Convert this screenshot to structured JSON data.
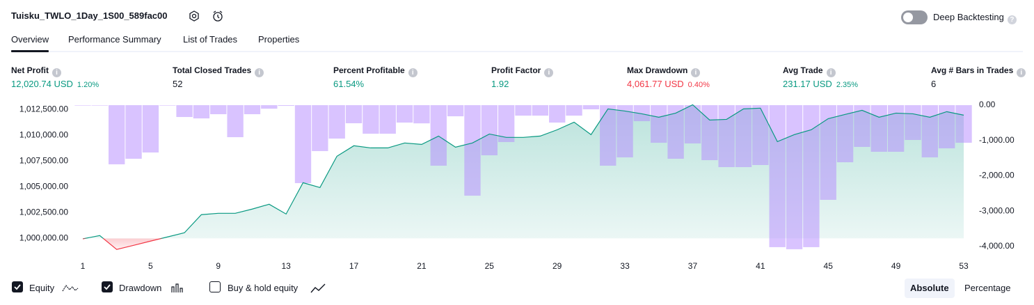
{
  "header": {
    "title": "Tuisku_TWLO_1Day_1S00_589fac00",
    "deep_backtesting": "Deep Backtesting"
  },
  "tabs": [
    "Overview",
    "Performance Summary",
    "List of Trades",
    "Properties"
  ],
  "active_tab": 0,
  "metrics": [
    {
      "label": "Net Profit",
      "value": "12,020.74 USD",
      "percent": "1.20%",
      "color": "#089981"
    },
    {
      "label": "Total Closed Trades",
      "value": "52",
      "color": "#131722"
    },
    {
      "label": "Percent Profitable",
      "value": "61.54%",
      "color": "#089981"
    },
    {
      "label": "Profit Factor",
      "value": "1.92",
      "color": "#089981"
    },
    {
      "label": "Max Drawdown",
      "value": "4,061.77 USD",
      "percent": "0.40%",
      "color": "#f23645"
    },
    {
      "label": "Avg Trade",
      "value": "231.17 USD",
      "percent": "2.35%",
      "color": "#089981"
    },
    {
      "label": "Avg # Bars in Trades",
      "value": "6",
      "color": "#131722"
    }
  ],
  "chart_data": {
    "type": "combo",
    "categories": [
      1,
      null,
      null,
      null,
      5,
      null,
      null,
      null,
      9,
      null,
      null,
      null,
      13,
      null,
      null,
      null,
      17,
      null,
      null,
      null,
      21,
      null,
      null,
      null,
      25,
      null,
      null,
      null,
      29,
      null,
      null,
      null,
      33,
      null,
      null,
      null,
      37,
      null,
      null,
      null,
      41,
      null,
      null,
      null,
      45,
      null,
      null,
      null,
      49,
      null,
      null,
      null,
      53
    ],
    "series": [
      {
        "name": "Equity",
        "type": "line",
        "color": "#089981",
        "negative_color": "#f23645",
        "values": [
          999950,
          1000270,
          998920,
          999320,
          999730,
          1000135,
          1000540,
          1002300,
          1002430,
          1002430,
          1002840,
          1003310,
          1002360,
          1005400,
          1004930,
          1007970,
          1008990,
          1008780,
          1008780,
          1009260,
          1009120,
          1009930,
          1008850,
          1009260,
          1010130,
          1009800,
          1009800,
          1009930,
          1010540,
          1011280,
          1010070,
          1012570,
          1012360,
          1012090,
          1011760,
          1012160,
          1012970,
          1011490,
          1011550,
          1012570,
          1012640,
          1009390,
          1010070,
          1010540,
          1011620,
          1012030,
          1012430,
          1011760,
          1012160,
          1012090,
          1011760,
          1012300,
          1011960
        ]
      },
      {
        "name": "Drawdown",
        "type": "bar",
        "axis": "y2",
        "color": "#b388ff",
        "values": [
          0,
          -10,
          -1675,
          -1517,
          -1340,
          0,
          -335,
          -375,
          -256,
          -906,
          -256,
          -100,
          -20,
          -2207,
          -1300,
          -946,
          -512,
          -808,
          -808,
          -493,
          -515,
          -1714,
          -315,
          -2562,
          -1419,
          -1044,
          -296,
          -296,
          -493,
          -296,
          -118,
          -1714,
          -1478,
          -453,
          -1064,
          -1517,
          -1084,
          -1557,
          -1754,
          -1754,
          -1695,
          -4020,
          -4079,
          -4020,
          -2680,
          -1616,
          -1182,
          -1320,
          -1320,
          -985,
          -1478,
          -1222,
          -1064
        ]
      }
    ],
    "ylim": [
      998800,
      1013000
    ],
    "yticks": [
      {
        "value": 1000000,
        "label": "1,000,000.00"
      },
      {
        "value": 1002500,
        "label": "1,002,500.00"
      },
      {
        "value": 1005000,
        "label": "1,005,000.00"
      },
      {
        "value": 1007500,
        "label": "1,007,500.00"
      },
      {
        "value": 1010000,
        "label": "1,010,000.00"
      },
      {
        "value": 1012500,
        "label": "1,012,500.00"
      }
    ],
    "y2lim": [
      -4120,
      20
    ],
    "y2ticks": [
      {
        "value": 0,
        "label": "0.00"
      },
      {
        "value": -1000,
        "label": "-1,000.00"
      },
      {
        "value": -2000,
        "label": "-2,000.00"
      },
      {
        "value": -3000,
        "label": "-3,000.00"
      },
      {
        "value": -4000,
        "label": "-4,000.00"
      }
    ]
  },
  "controls": {
    "extra_series": "Buy & hold equity",
    "modes": [
      "Absolute",
      "Percentage"
    ],
    "active_mode": 0
  }
}
